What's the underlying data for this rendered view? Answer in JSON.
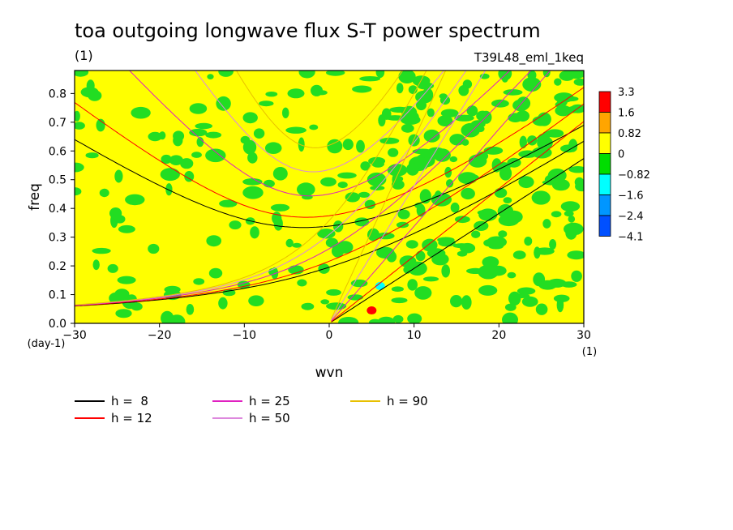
{
  "chart_data": {
    "type": "heatmap",
    "title": "toa outgoing longwave flux S-T power spectrum",
    "subtitle_left": "(1)",
    "subtitle_right": "T39L48_eml_1keq",
    "xlabel": "wvn",
    "ylabel": "freq",
    "x_unit": "(1)",
    "y_unit": "(day-1)",
    "xlim": [
      -30,
      30
    ],
    "ylim": [
      0,
      0.88
    ],
    "xticks": [
      "−30",
      "−20",
      "−10",
      "0",
      "10",
      "20",
      "30"
    ],
    "yticks": [
      "0.0",
      "0.1",
      "0.2",
      "0.3",
      "0.4",
      "0.5",
      "0.6",
      "0.7",
      "0.8"
    ],
    "colorbar": {
      "levels": [
        "3.3",
        "1.6",
        "0.82",
        "0",
        "−0.82",
        "−1.6",
        "−2.4",
        "−4.1"
      ],
      "colors": [
        "#ff0000",
        "#ffa500",
        "#ffff00",
        "#00dd00",
        "#00ffff",
        "#0096ff",
        "#0050ff"
      ]
    },
    "field_colors": {
      "positive": "#ffff00",
      "negative": "#22dd22"
    },
    "features": [
      {
        "wvn": 6,
        "freq": 0.13,
        "value": "-1.6",
        "color": "#00ffff"
      },
      {
        "wvn": 5,
        "freq": 0.045,
        "value": "1.6",
        "color": "#ff0000"
      }
    ],
    "dispersion_curves": [
      {
        "name": "h =  8",
        "equivalent_depth_m": 8,
        "color": "#000000"
      },
      {
        "name": "h = 12",
        "equivalent_depth_m": 12,
        "color": "#ff0000"
      },
      {
        "name": "h = 25",
        "equivalent_depth_m": 25,
        "color": "#e020c0"
      },
      {
        "name": "h = 50",
        "equivalent_depth_m": 50,
        "color": "#dd88dd"
      },
      {
        "name": "h = 90",
        "equivalent_depth_m": 90,
        "color": "#e8c000"
      }
    ],
    "legend_position": "bottom",
    "grid": false
  }
}
